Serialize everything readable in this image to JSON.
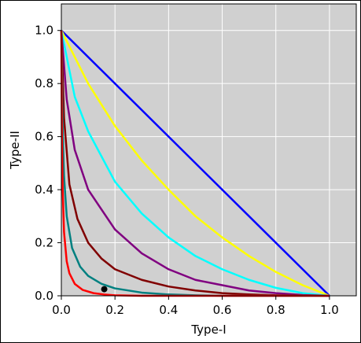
{
  "chart_data": {
    "type": "line",
    "xlabel": "Type-I",
    "ylabel": "Type-II",
    "xlim": [
      0,
      1.1
    ],
    "ylim": [
      0,
      1.1
    ],
    "xticks": [
      0.0,
      0.2,
      0.4,
      0.6,
      0.8,
      1.0
    ],
    "yticks": [
      0.0,
      0.2,
      0.4,
      0.6,
      0.8,
      1.0
    ],
    "xtick_labels": [
      "0.0",
      "0.2",
      "0.4",
      "0.6",
      "0.8",
      "1.0"
    ],
    "ytick_labels": [
      "0.0",
      "0.2",
      "0.4",
      "0.6",
      "0.8",
      "1.0"
    ],
    "grid": true,
    "background": "#d0d0d0",
    "series": [
      {
        "color": "#0000ff",
        "x": [
          0.0,
          0.25,
          0.5,
          0.75,
          1.0
        ],
        "y": [
          1.0,
          0.75,
          0.5,
          0.25,
          0.0
        ]
      },
      {
        "color": "#ffff00",
        "x": [
          0.0,
          0.1,
          0.2,
          0.3,
          0.4,
          0.5,
          0.6,
          0.7,
          0.8,
          0.9,
          1.0
        ],
        "y": [
          1.0,
          0.8,
          0.64,
          0.51,
          0.4,
          0.3,
          0.22,
          0.15,
          0.09,
          0.04,
          0.0
        ]
      },
      {
        "color": "#00ffff",
        "x": [
          0.0,
          0.05,
          0.1,
          0.2,
          0.3,
          0.4,
          0.5,
          0.6,
          0.7,
          0.8,
          0.9,
          1.0
        ],
        "y": [
          1.0,
          0.75,
          0.62,
          0.43,
          0.31,
          0.22,
          0.15,
          0.1,
          0.06,
          0.03,
          0.01,
          0.0
        ]
      },
      {
        "color": "#800080",
        "x": [
          0.0,
          0.02,
          0.05,
          0.1,
          0.2,
          0.3,
          0.4,
          0.5,
          0.6,
          0.7,
          0.8,
          0.9,
          1.0
        ],
        "y": [
          1.0,
          0.74,
          0.55,
          0.4,
          0.25,
          0.16,
          0.1,
          0.06,
          0.04,
          0.02,
          0.01,
          0.003,
          0.0
        ]
      },
      {
        "color": "#800000",
        "x": [
          0.0,
          0.01,
          0.03,
          0.06,
          0.1,
          0.15,
          0.2,
          0.3,
          0.4,
          0.5,
          0.6,
          0.7,
          0.8,
          0.9,
          1.0
        ],
        "y": [
          1.0,
          0.67,
          0.42,
          0.29,
          0.2,
          0.14,
          0.1,
          0.06,
          0.035,
          0.02,
          0.01,
          0.005,
          0.002,
          0.001,
          0.0
        ]
      },
      {
        "color": "#008080",
        "x": [
          0.0,
          0.005,
          0.01,
          0.02,
          0.04,
          0.07,
          0.1,
          0.15,
          0.2,
          0.3,
          0.4,
          0.5,
          0.6,
          0.7,
          0.8,
          0.9,
          1.0
        ],
        "y": [
          1.0,
          0.62,
          0.45,
          0.3,
          0.18,
          0.11,
          0.075,
          0.045,
          0.028,
          0.012,
          0.005,
          0.002,
          0.0,
          0.0,
          0.0,
          0.0,
          0.0
        ]
      },
      {
        "color": "#ff0000",
        "x": [
          0.0,
          0.002,
          0.005,
          0.01,
          0.02,
          0.03,
          0.05,
          0.08,
          0.12,
          0.16,
          0.2,
          0.3,
          0.4,
          0.6,
          0.8,
          1.0
        ],
        "y": [
          1.0,
          0.6,
          0.4,
          0.24,
          0.13,
          0.085,
          0.045,
          0.022,
          0.01,
          0.005,
          0.002,
          0.0,
          0.0,
          0.0,
          0.0,
          0.0
        ]
      }
    ],
    "points": [
      {
        "x": 0.16,
        "y": 0.025,
        "color": "#000000"
      }
    ]
  }
}
